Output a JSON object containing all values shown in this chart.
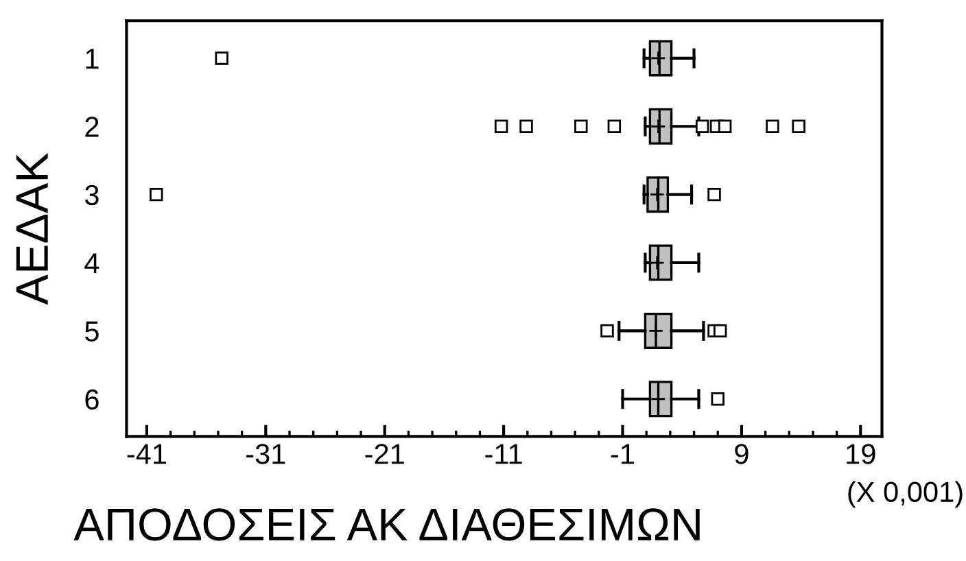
{
  "chart_data": {
    "type": "box",
    "orientation": "horizontal",
    "xlabel": "ΑΠΟΔΟΣΕΙΣ ΑΚ ΔΙΑΘΕΣΙΜΩΝ",
    "ylabel": "ΑΕΔΑΚ",
    "categories": [
      "1",
      "2",
      "3",
      "4",
      "5",
      "6"
    ],
    "color": "#c0c0c0",
    "boxes": [
      {
        "low": 0.8,
        "q1": 1.3,
        "median": 2.1,
        "q3": 3.1,
        "high": 5.0,
        "mean": 2.0,
        "outliers": [
          -34.7
        ]
      },
      {
        "low": 0.9,
        "q1": 1.3,
        "median": 2.1,
        "q3": 3.1,
        "high": 5.4,
        "mean": 2.0,
        "outliers": [
          -11.2,
          -9.1,
          -4.5,
          -1.7,
          5.7,
          6.9,
          7.6,
          11.6,
          13.8
        ]
      },
      {
        "low": 0.8,
        "q1": 1.1,
        "median": 2.0,
        "q3": 2.8,
        "high": 4.8,
        "mean": 1.9,
        "outliers": [
          -40.2,
          6.7
        ]
      },
      {
        "low": 0.9,
        "q1": 1.3,
        "median": 2.0,
        "q3": 3.1,
        "high": 5.4,
        "mean": 1.9
      },
      {
        "low": -1.3,
        "q1": 0.9,
        "median": 1.8,
        "q3": 3.1,
        "high": 5.8,
        "mean": 1.8,
        "outliers": [
          -2.3,
          6.7,
          7.2
        ]
      },
      {
        "low": -1.0,
        "q1": 1.3,
        "median": 2.0,
        "q3": 3.1,
        "high": 5.4,
        "mean": 2.0,
        "outliers": [
          7.0
        ]
      }
    ],
    "xlim": [
      -42.7,
      20.8
    ],
    "xticks": [
      -41,
      -31,
      -21,
      -11,
      -1,
      9,
      19
    ],
    "grid": false,
    "annotations": [
      "(X 0,001)"
    ]
  }
}
